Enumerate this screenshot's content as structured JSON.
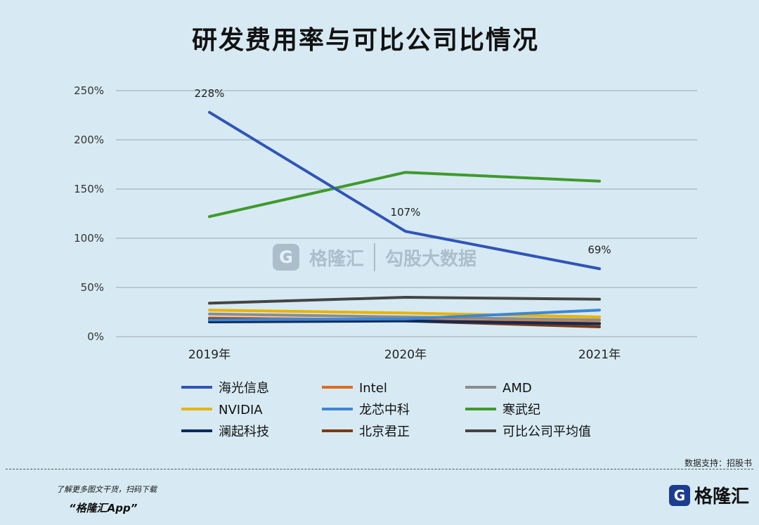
{
  "title": "研发费用率与可比公司比情况",
  "source_note": "数据支持：招股书",
  "promo": {
    "line1": "了解更多图文干货，扫码下载",
    "line2": "“格隆汇App”"
  },
  "brand": {
    "logo_letter": "G",
    "name": "格隆汇"
  },
  "watermark": {
    "logo_letter": "G",
    "name": "格隆汇",
    "sub": "勾股大数据"
  },
  "chart_data": {
    "type": "line",
    "title": "研发费用率与可比公司比情况",
    "categories": [
      "2019年",
      "2020年",
      "2021年"
    ],
    "ylim": [
      0,
      250
    ],
    "yticks": [
      0,
      50,
      100,
      150,
      200,
      250
    ],
    "ytick_labels": [
      "0%",
      "50%",
      "100%",
      "150%",
      "200%",
      "250%"
    ],
    "grid": true,
    "legend_position": "bottom",
    "series": [
      {
        "name": "海光信息",
        "color": "#2f55b8",
        "values": [
          228,
          107,
          69
        ],
        "labels": [
          "228%",
          "107%",
          "69%"
        ]
      },
      {
        "name": "Intel",
        "color": "#e06b1e",
        "values": [
          19,
          17,
          14
        ]
      },
      {
        "name": "AMD",
        "color": "#8c8c8c",
        "values": [
          23,
          20,
          17
        ]
      },
      {
        "name": "NVIDIA",
        "color": "#e8b400",
        "values": [
          27,
          24,
          20
        ]
      },
      {
        "name": "龙芯中科",
        "color": "#3d86d6",
        "values": [
          17,
          18,
          27
        ]
      },
      {
        "name": "寒武纪",
        "color": "#3f9a2c",
        "values": [
          122,
          167,
          158
        ]
      },
      {
        "name": "澜起科技",
        "color": "#0d2a5c",
        "values": [
          15,
          16,
          13
        ]
      },
      {
        "name": "北京君正",
        "color": "#7a3a14",
        "values": [
          18,
          16,
          10
        ]
      },
      {
        "name": "可比公司平均值",
        "color": "#444444",
        "values": [
          34,
          40,
          38
        ]
      }
    ]
  }
}
